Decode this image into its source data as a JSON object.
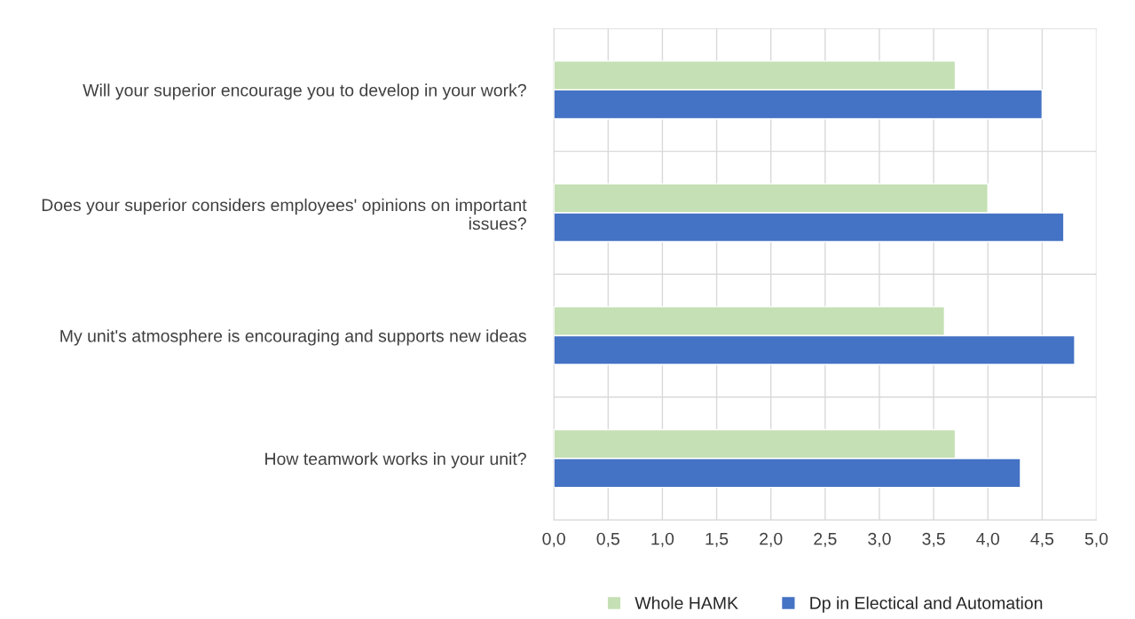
{
  "chart_data": {
    "type": "bar",
    "orientation": "horizontal",
    "categories": [
      "Will your superior encourage you to develop in your work?",
      "Does your superior considers employees' opinions on important issues?",
      "My unit's atmosphere is encouraging and supports new ideas",
      "How teamwork works in your unit?"
    ],
    "series": [
      {
        "name": "Whole HAMK",
        "color": "#c5e0b4",
        "values": [
          3.7,
          4.0,
          3.6,
          3.7
        ]
      },
      {
        "name": "Dp in Electical and Automation",
        "color": "#4472c4",
        "values": [
          4.5,
          4.7,
          4.8,
          4.3
        ]
      }
    ],
    "xlim": [
      0,
      5
    ],
    "xticks": [
      {
        "value": 0,
        "label": "0,0"
      },
      {
        "value": 0.5,
        "label": "0,5"
      },
      {
        "value": 1,
        "label": "1,0"
      },
      {
        "value": 1.5,
        "label": "1,5"
      },
      {
        "value": 2,
        "label": "2,0"
      },
      {
        "value": 2.5,
        "label": "2,5"
      },
      {
        "value": 3,
        "label": "3,0"
      },
      {
        "value": 3.5,
        "label": "3,5"
      },
      {
        "value": 4,
        "label": "4,0"
      },
      {
        "value": 4.5,
        "label": "4,5"
      },
      {
        "value": 5,
        "label": "5,0"
      }
    ],
    "grid": true,
    "legend": "bottom"
  }
}
